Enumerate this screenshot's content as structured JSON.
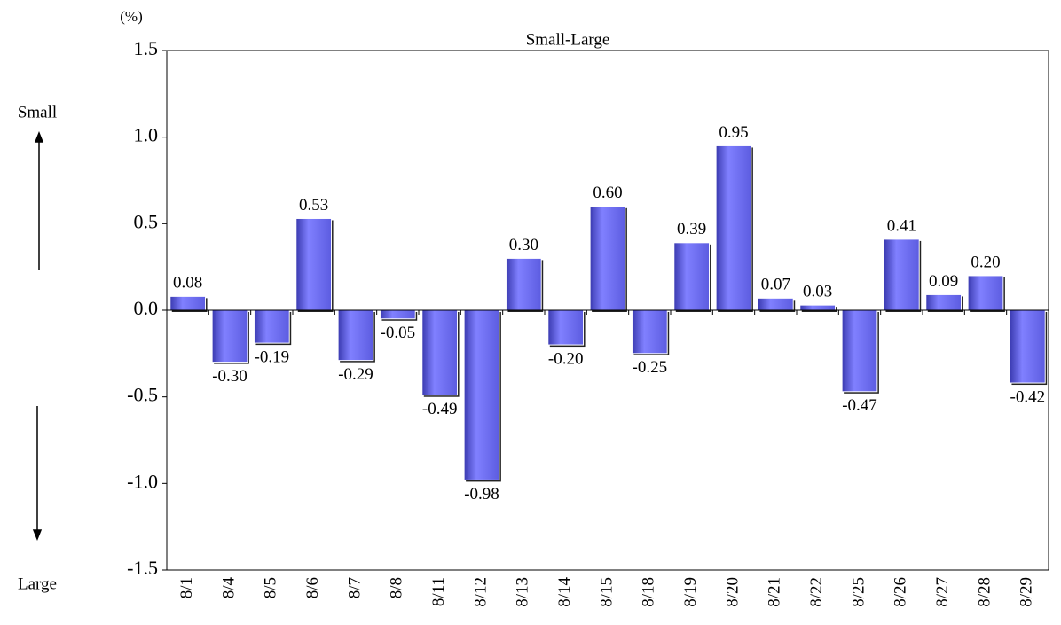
{
  "chart_data": {
    "type": "bar",
    "title": "Small-Large",
    "y_unit": "(%)",
    "annotations": {
      "up": "Small",
      "down": "Large"
    },
    "categories": [
      "8/1",
      "8/4",
      "8/5",
      "8/6",
      "8/7",
      "8/8",
      "8/11",
      "8/12",
      "8/13",
      "8/14",
      "8/15",
      "8/18",
      "8/19",
      "8/20",
      "8/21",
      "8/22",
      "8/25",
      "8/26",
      "8/27",
      "8/28",
      "8/29"
    ],
    "values": [
      0.08,
      -0.3,
      -0.19,
      0.53,
      -0.29,
      -0.05,
      -0.49,
      -0.98,
      0.3,
      -0.2,
      0.6,
      -0.25,
      0.39,
      0.95,
      0.07,
      0.03,
      -0.47,
      0.41,
      0.09,
      0.2,
      -0.42
    ],
    "value_labels": [
      "0.08",
      "-0.30",
      "-0.19",
      "0.53",
      "-0.29",
      "-0.05",
      "-0.49",
      "-0.98",
      "0.30",
      "-0.20",
      "0.60",
      "-0.25",
      "0.39",
      "0.95",
      "0.07",
      "0.03",
      "-0.47",
      "0.41",
      "0.09",
      "0.20",
      "-0.42"
    ],
    "color": "#6b6bf0",
    "ylim": [
      -1.5,
      1.5
    ],
    "yticks": [
      1.5,
      {
        "value": 1.0,
        "label": "1.0"
      },
      0.5,
      {
        "value": 0,
        "label": "0.0"
      },
      -0.5,
      {
        "value": -1.0,
        "label": "-1.0"
      },
      -1.5
    ],
    "grid": false
  }
}
